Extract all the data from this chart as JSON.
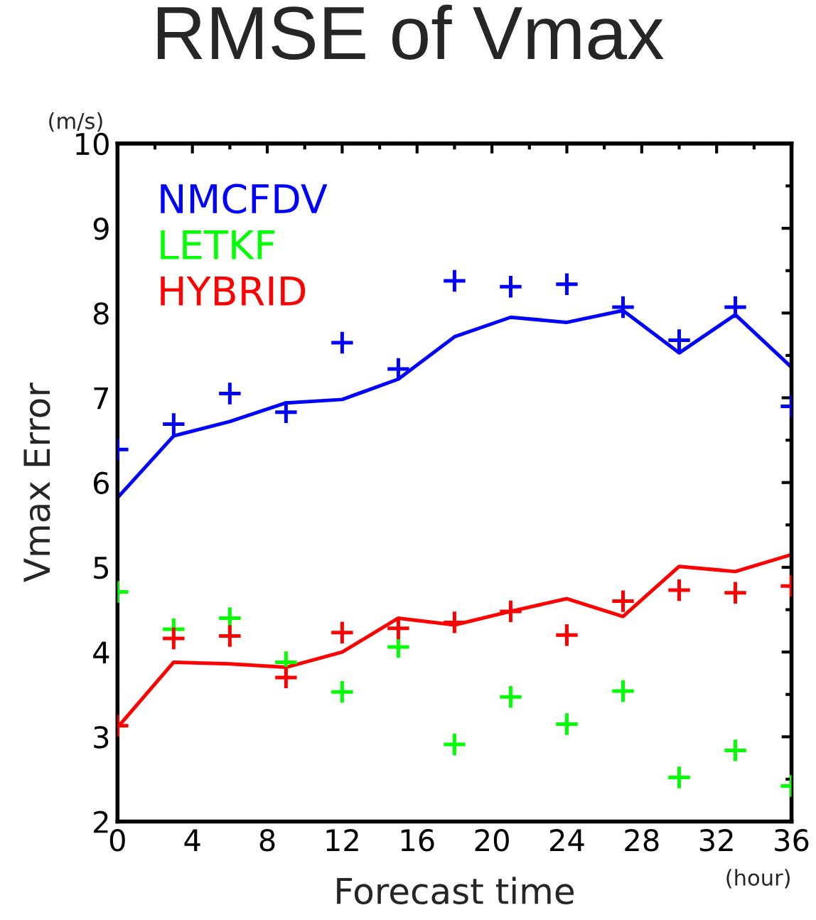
{
  "chart_data": {
    "type": "line",
    "title": "RMSE of Vmax",
    "xlabel": "Forecast time",
    "ylabel": "Vmax Error",
    "annotations": [
      "(m/s)",
      "(hour)"
    ],
    "x": [
      0,
      3,
      6,
      9,
      12,
      15,
      18,
      21,
      24,
      27,
      30,
      33,
      36
    ],
    "series": [
      {
        "name": "NMCFDV",
        "color": "#0000ff",
        "marker": "none",
        "line_style": "solid",
        "values": [
          5.82,
          6.55,
          6.72,
          6.94,
          6.98,
          7.22,
          7.72,
          7.95,
          7.89,
          8.03,
          7.53,
          7.98,
          7.36
        ]
      },
      {
        "color": "#0000ff",
        "type": "scatter",
        "marker": "cross",
        "values": [
          6.39,
          6.69,
          7.05,
          6.83,
          7.65,
          7.34,
          8.38,
          8.31,
          8.34,
          8.07,
          7.68,
          8.07,
          6.9
        ]
      },
      {
        "name": "LETKF",
        "color": "#00ff00",
        "type": "scatter",
        "marker": "cross",
        "values": [
          4.71,
          4.27,
          4.4,
          3.88,
          3.53,
          4.06,
          2.91,
          3.47,
          3.15,
          3.54,
          2.52,
          2.84,
          2.42
        ]
      },
      {
        "name": "HYBRID",
        "color": "#ff0000",
        "marker": "none",
        "line_style": "solid",
        "values": [
          3.11,
          3.88,
          3.86,
          3.82,
          4.0,
          4.4,
          4.32,
          4.48,
          4.63,
          4.42,
          5.01,
          4.95,
          5.15
        ]
      },
      {
        "color": "#ff0000",
        "type": "scatter",
        "marker": "cross",
        "values": [
          3.13,
          4.16,
          4.19,
          3.7,
          4.23,
          4.28,
          4.35,
          4.48,
          4.2,
          4.6,
          4.73,
          4.7,
          4.78
        ]
      }
    ],
    "xlim": [
      0,
      36
    ],
    "xticks": [
      0,
      {
        "value": 2,
        "label": null
      },
      4,
      {
        "value": 6,
        "label": null
      },
      8,
      {
        "value": 10,
        "label": null
      },
      12,
      {
        "value": 14,
        "label": null
      },
      16,
      {
        "value": 18,
        "label": null
      },
      20,
      {
        "value": 22,
        "label": null
      },
      24,
      {
        "value": 26,
        "label": null
      },
      28,
      {
        "value": 30,
        "label": null
      },
      32,
      {
        "value": 34,
        "label": null
      },
      36
    ],
    "ylim": [
      2,
      10
    ],
    "yticks": [
      2,
      {
        "value": 2.5,
        "label": null
      },
      3,
      {
        "value": 3.5,
        "label": null
      },
      4,
      {
        "value": 4.5,
        "label": null
      },
      5,
      {
        "value": 5.5,
        "label": null
      },
      6,
      {
        "value": 6.5,
        "label": null
      },
      7,
      {
        "value": 7.5,
        "label": null
      },
      8,
      {
        "value": 8.5,
        "label": null
      },
      9,
      {
        "value": 9.5,
        "label": null
      },
      10
    ],
    "grid": false,
    "legend": "top left"
  }
}
